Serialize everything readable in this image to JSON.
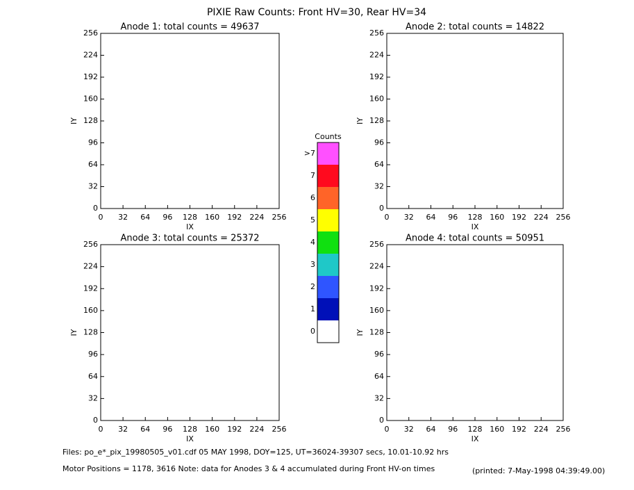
{
  "title": "PIXIE Raw Counts:  Front HV=30, Rear HV=34",
  "chart_data": [
    {
      "type": "heatmap",
      "title": "Anode 1: total counts = 49637",
      "x_label": "IX",
      "y_label": "IY",
      "xlim": [
        0,
        256
      ],
      "ylim": [
        0,
        256
      ],
      "xticks": [
        0,
        32,
        64,
        96,
        128,
        160,
        192,
        224,
        256
      ],
      "yticks": [
        0,
        32,
        64,
        96,
        128,
        160,
        192,
        224,
        256
      ]
    },
    {
      "type": "heatmap",
      "title": "Anode 2: total counts = 14822",
      "x_label": "IX",
      "y_label": "IY",
      "xlim": [
        0,
        256
      ],
      "ylim": [
        0,
        256
      ],
      "xticks": [
        0,
        32,
        64,
        96,
        128,
        160,
        192,
        224,
        256
      ],
      "yticks": [
        0,
        32,
        64,
        96,
        128,
        160,
        192,
        224,
        256
      ]
    },
    {
      "type": "heatmap",
      "title": "Anode 3: total counts = 25372",
      "x_label": "IX",
      "y_label": "IY",
      "xlim": [
        0,
        256
      ],
      "ylim": [
        0,
        256
      ],
      "xticks": [
        0,
        32,
        64,
        96,
        128,
        160,
        192,
        224,
        256
      ],
      "yticks": [
        0,
        32,
        64,
        96,
        128,
        160,
        192,
        224,
        256
      ]
    },
    {
      "type": "heatmap",
      "title": "Anode 4: total counts = 50951",
      "x_label": "IX",
      "y_label": "IY",
      "xlim": [
        0,
        256
      ],
      "ylim": [
        0,
        256
      ],
      "xticks": [
        0,
        32,
        64,
        96,
        128,
        160,
        192,
        224,
        256
      ],
      "yticks": [
        0,
        32,
        64,
        96,
        128,
        160,
        192,
        224,
        256
      ]
    }
  ],
  "colorbar": {
    "title": "Counts",
    "labels": [
      "0",
      "1",
      "2",
      "3",
      "4",
      "5",
      "6",
      "7",
      ">7"
    ],
    "colors": [
      "#ffffff",
      "#0010b8",
      "#2f55ff",
      "#1fc8c8",
      "#10e010",
      "#ffff00",
      "#ff6428",
      "#ff0a1e",
      "#ff50ff"
    ]
  },
  "footer": {
    "files": "Files: po_e*_pix_19980505_v01.cdf    05 MAY 1998, DOY=125, UT=36024-39307 secs, 10.01-10.92 hrs",
    "motor": "Motor Positions = 1178, 3616   Note: data for Anodes 3 & 4 accumulated during Front HV-on times",
    "printed": "(printed:  7-May-1998 04:39:49.00)"
  }
}
